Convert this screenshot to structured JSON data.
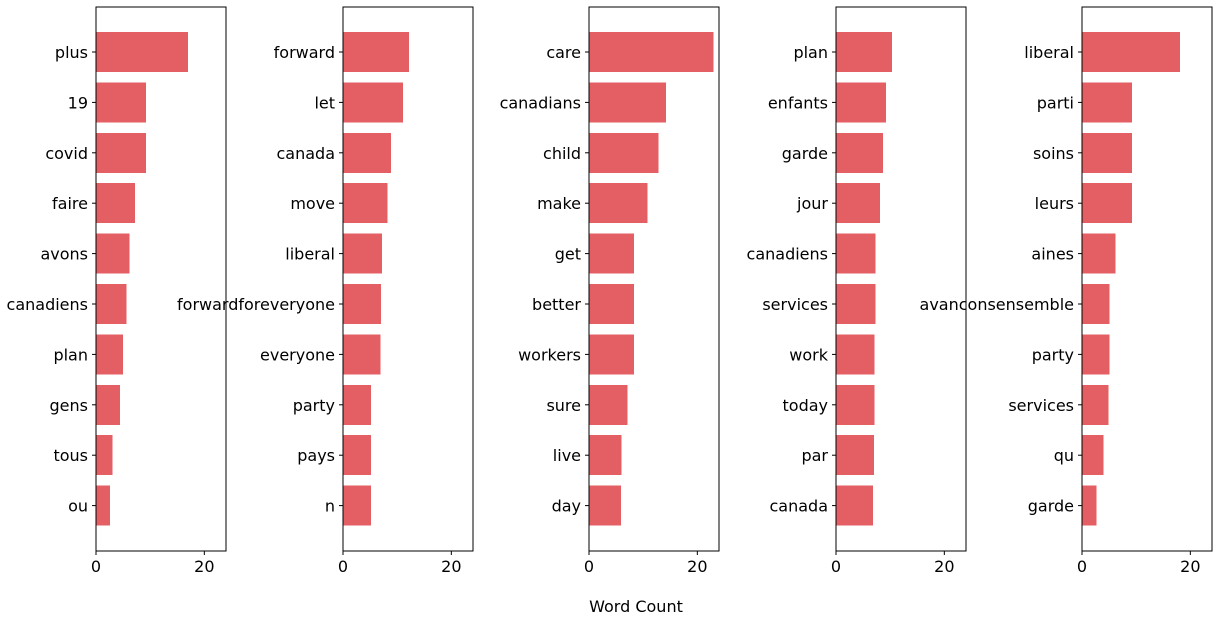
{
  "figure": {
    "xlabel": "Word Count",
    "bar_color": "#e35f64"
  },
  "chart_data": [
    {
      "type": "bar",
      "orientation": "horizontal",
      "categories": [
        "plus",
        "19",
        "covid",
        "faire",
        "avons",
        "canadiens",
        "plan",
        "gens",
        "tous",
        "ou"
      ],
      "values": [
        17,
        9.2,
        9.2,
        7.2,
        6.2,
        5.6,
        5.0,
        4.4,
        3.0,
        2.6
      ],
      "xlim": [
        0,
        24
      ],
      "xticks": [
        0,
        20
      ],
      "xlabel": "Word Count",
      "grid": false
    },
    {
      "type": "bar",
      "orientation": "horizontal",
      "categories": [
        "forward",
        "let",
        "canada",
        "move",
        "liberal",
        "forwardforeveryone",
        "everyone",
        "party",
        "pays",
        "n"
      ],
      "values": [
        12.2,
        11.1,
        8.9,
        8.2,
        7.2,
        7.0,
        6.9,
        5.2,
        5.2,
        5.2
      ],
      "xlim": [
        0,
        24
      ],
      "xticks": [
        0,
        20
      ],
      "xlabel": "Word Count",
      "grid": false
    },
    {
      "type": "bar",
      "orientation": "horizontal",
      "categories": [
        "care",
        "canadians",
        "child",
        "make",
        "get",
        "better",
        "workers",
        "sure",
        "live",
        "day"
      ],
      "values": [
        23,
        14.2,
        12.8,
        10.8,
        8.3,
        8.3,
        8.3,
        7.1,
        6.0,
        5.9
      ],
      "xlim": [
        0,
        24
      ],
      "xticks": [
        0,
        20
      ],
      "xlabel": "Word Count",
      "grid": false
    },
    {
      "type": "bar",
      "orientation": "horizontal",
      "categories": [
        "plan",
        "enfants",
        "garde",
        "jour",
        "canadiens",
        "services",
        "work",
        "today",
        "par",
        "canada"
      ],
      "values": [
        10.3,
        9.2,
        8.7,
        8.1,
        7.3,
        7.3,
        7.1,
        7.1,
        7.0,
        6.8
      ],
      "xlim": [
        0,
        24
      ],
      "xticks": [
        0,
        20
      ],
      "xlabel": "Word Count",
      "grid": false
    },
    {
      "type": "bar",
      "orientation": "horizontal",
      "categories": [
        "liberal",
        "parti",
        "soins",
        "leurs",
        "aines",
        "avanconsensemble",
        "party",
        "services",
        "qu",
        "garde"
      ],
      "values": [
        18.1,
        9.2,
        9.2,
        9.2,
        6.2,
        5.1,
        5.1,
        4.9,
        4.0,
        2.7
      ],
      "xlim": [
        0,
        24
      ],
      "xticks": [
        0,
        20
      ],
      "xlabel": "Word Count",
      "grid": false
    }
  ]
}
